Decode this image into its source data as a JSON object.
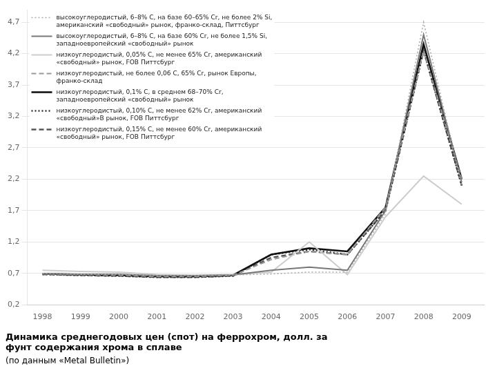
{
  "chart_data": {
    "type": "line",
    "title": "Динамика среднегодовых цен (спот) на феррохром, долл. за\nфунт содержания хрома в сплаве",
    "subtitle": "(по данным «Metal Bulletin»)",
    "x": [
      1998,
      1999,
      2000,
      2001,
      2002,
      2003,
      2004,
      2005,
      2006,
      2007,
      2008,
      2009
    ],
    "series": [
      {
        "name": "высокоуглеродистый, 6–8% С, на базе 60–65% Cr, не более 2% Si,\nамериканский «свободный» рынок, франко-склад, Питтсбург",
        "color": "#aaaaaa",
        "line_style": "dotted",
        "values": [
          0.695,
          0.685,
          0.685,
          0.665,
          0.665,
          0.675,
          0.69,
          0.72,
          0.72,
          1.65,
          4.7,
          2.1
        ]
      },
      {
        "name": "высокоуглеродистый, 6–8% С, на базе 60% Cr, не более 1,5% Si,\nзападноевропейский «свободный» рынок",
        "color": "#777777",
        "line_style": "solid",
        "values": [
          0.695,
          0.685,
          0.685,
          0.665,
          0.665,
          0.675,
          0.75,
          0.8,
          0.75,
          1.7,
          4.5,
          2.15
        ]
      },
      {
        "name": "низкоуглеродистый, 0,05% С, не менее 65% Cr, американский\n«свободный» рынок, FOB Питтсбург",
        "color": "#cccccc",
        "line_style": "solid",
        "values": [
          0.75,
          0.73,
          0.72,
          0.68,
          0.67,
          0.68,
          0.72,
          1.2,
          0.68,
          1.6,
          2.25,
          1.8
        ]
      },
      {
        "name": "низкоуглеродистый, не более 0,06 С, 65% Cr, рынок Европы,\nфранко-склад",
        "color": "#999999",
        "line_style": "dashed",
        "values": [
          0.695,
          0.68,
          0.67,
          0.65,
          0.65,
          0.67,
          0.92,
          1.05,
          1.0,
          1.75,
          4.25,
          2.2
        ]
      },
      {
        "name": "низкоуглеродистый, 0,1% С, в среднем 68–70% Cr,\nзападноевропейский «свободный» рынок",
        "color": "#111111",
        "line_style": "solid",
        "values": [
          0.695,
          0.68,
          0.67,
          0.65,
          0.65,
          0.67,
          1.0,
          1.1,
          1.05,
          1.75,
          4.35,
          2.2
        ]
      },
      {
        "name": "низкоуглеродистый, 0,10% С, не менее 62% Cr, американский\n«свободный»В рынок, FOB Питтсбург",
        "color": "#333333",
        "line_style": "dotted",
        "values": [
          0.685,
          0.67,
          0.66,
          0.64,
          0.64,
          0.66,
          1.0,
          1.08,
          1.0,
          1.7,
          4.25,
          2.1
        ]
      },
      {
        "name": "низкоуглеродистый, 0,15% С, не менее 60% Cr, американский\n«свободный» рынок, FOB Питтсбург",
        "color": "#555555",
        "line_style": "dashed",
        "values": [
          0.685,
          0.67,
          0.66,
          0.64,
          0.64,
          0.66,
          0.95,
          1.05,
          1.0,
          1.7,
          4.25,
          2.1
        ]
      }
    ],
    "xlim": [
      1997.6,
      2009.6
    ],
    "xticks": [
      1998,
      1999,
      2000,
      2001,
      2002,
      2003,
      2004,
      2005,
      2006,
      2007,
      2008,
      2009
    ],
    "ylim": [
      0.2,
      4.9
    ],
    "yticks": [
      {
        "value": 0.2,
        "label": "0,2"
      },
      {
        "value": 0.7,
        "label": "0,7"
      },
      {
        "value": 1.2,
        "label": "1,2"
      },
      {
        "value": 1.7,
        "label": "1,7"
      },
      {
        "value": 2.2,
        "label": "2,2"
      },
      {
        "value": 2.7,
        "label": "2,7"
      },
      {
        "value": 3.2,
        "label": "3,2"
      },
      {
        "value": 3.7,
        "label": "3,7"
      },
      {
        "value": 4.2,
        "label": "4,2"
      },
      {
        "value": 4.7,
        "label": "4,7"
      }
    ],
    "grid": "y",
    "legend": "upper left"
  }
}
